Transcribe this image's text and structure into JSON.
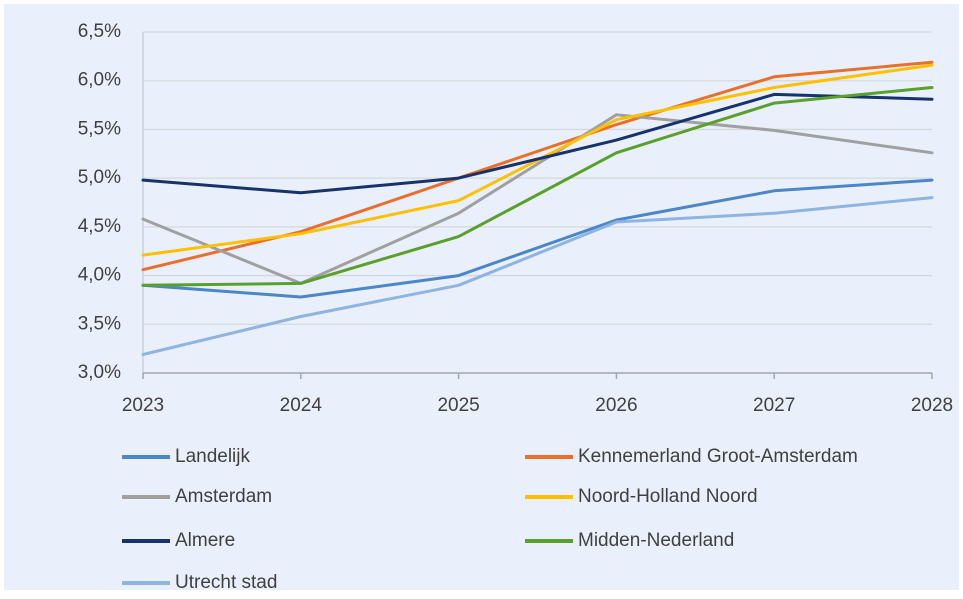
{
  "chart_data": {
    "type": "line",
    "x": [
      2023,
      2024,
      2025,
      2026,
      2027,
      2028
    ],
    "xlim": [
      2023,
      2028
    ],
    "xticks": [
      2023,
      2024,
      2025,
      2026,
      2027,
      2028
    ],
    "ylim": [
      3.0,
      6.5
    ],
    "yticks": [
      {
        "value": 3.0,
        "label": "3,0%"
      },
      {
        "value": 3.5,
        "label": "3,5%"
      },
      {
        "value": 4.0,
        "label": "4,0%"
      },
      {
        "value": 4.5,
        "label": "4,5%"
      },
      {
        "value": 5.0,
        "label": "5,0%"
      },
      {
        "value": 5.5,
        "label": "5,5%"
      },
      {
        "value": 6.0,
        "label": "6,0%"
      },
      {
        "value": 6.5,
        "label": "6,5%"
      }
    ],
    "grid": true,
    "legend": "bottom",
    "series": [
      {
        "name": "Landelijk",
        "color": "#4a86c8",
        "values": [
          3.9,
          3.78,
          4.0,
          4.57,
          4.87,
          4.98
        ]
      },
      {
        "name": "Kennemerland Groot-Amsterdam",
        "color": "#e8702a",
        "values": [
          4.06,
          4.45,
          5.0,
          5.55,
          6.04,
          6.19
        ]
      },
      {
        "name": "Amsterdam",
        "color": "#a0a0a0",
        "values": [
          4.58,
          3.92,
          4.64,
          5.65,
          5.49,
          5.26
        ]
      },
      {
        "name": "Noord-Holland Noord",
        "color": "#ffc000",
        "values": [
          4.21,
          4.43,
          4.77,
          5.6,
          5.93,
          6.16
        ]
      },
      {
        "name": "Almere",
        "color": "#17336b",
        "values": [
          4.98,
          4.85,
          5.0,
          5.39,
          5.86,
          5.81
        ]
      },
      {
        "name": "Midden-Nederland",
        "color": "#5aa02c",
        "values": [
          3.9,
          3.92,
          4.4,
          5.26,
          5.77,
          5.93
        ]
      },
      {
        "name": "Utrecht stad",
        "color": "#8db4e2",
        "values": [
          3.19,
          3.58,
          3.9,
          4.55,
          4.64,
          4.8
        ]
      }
    ]
  }
}
